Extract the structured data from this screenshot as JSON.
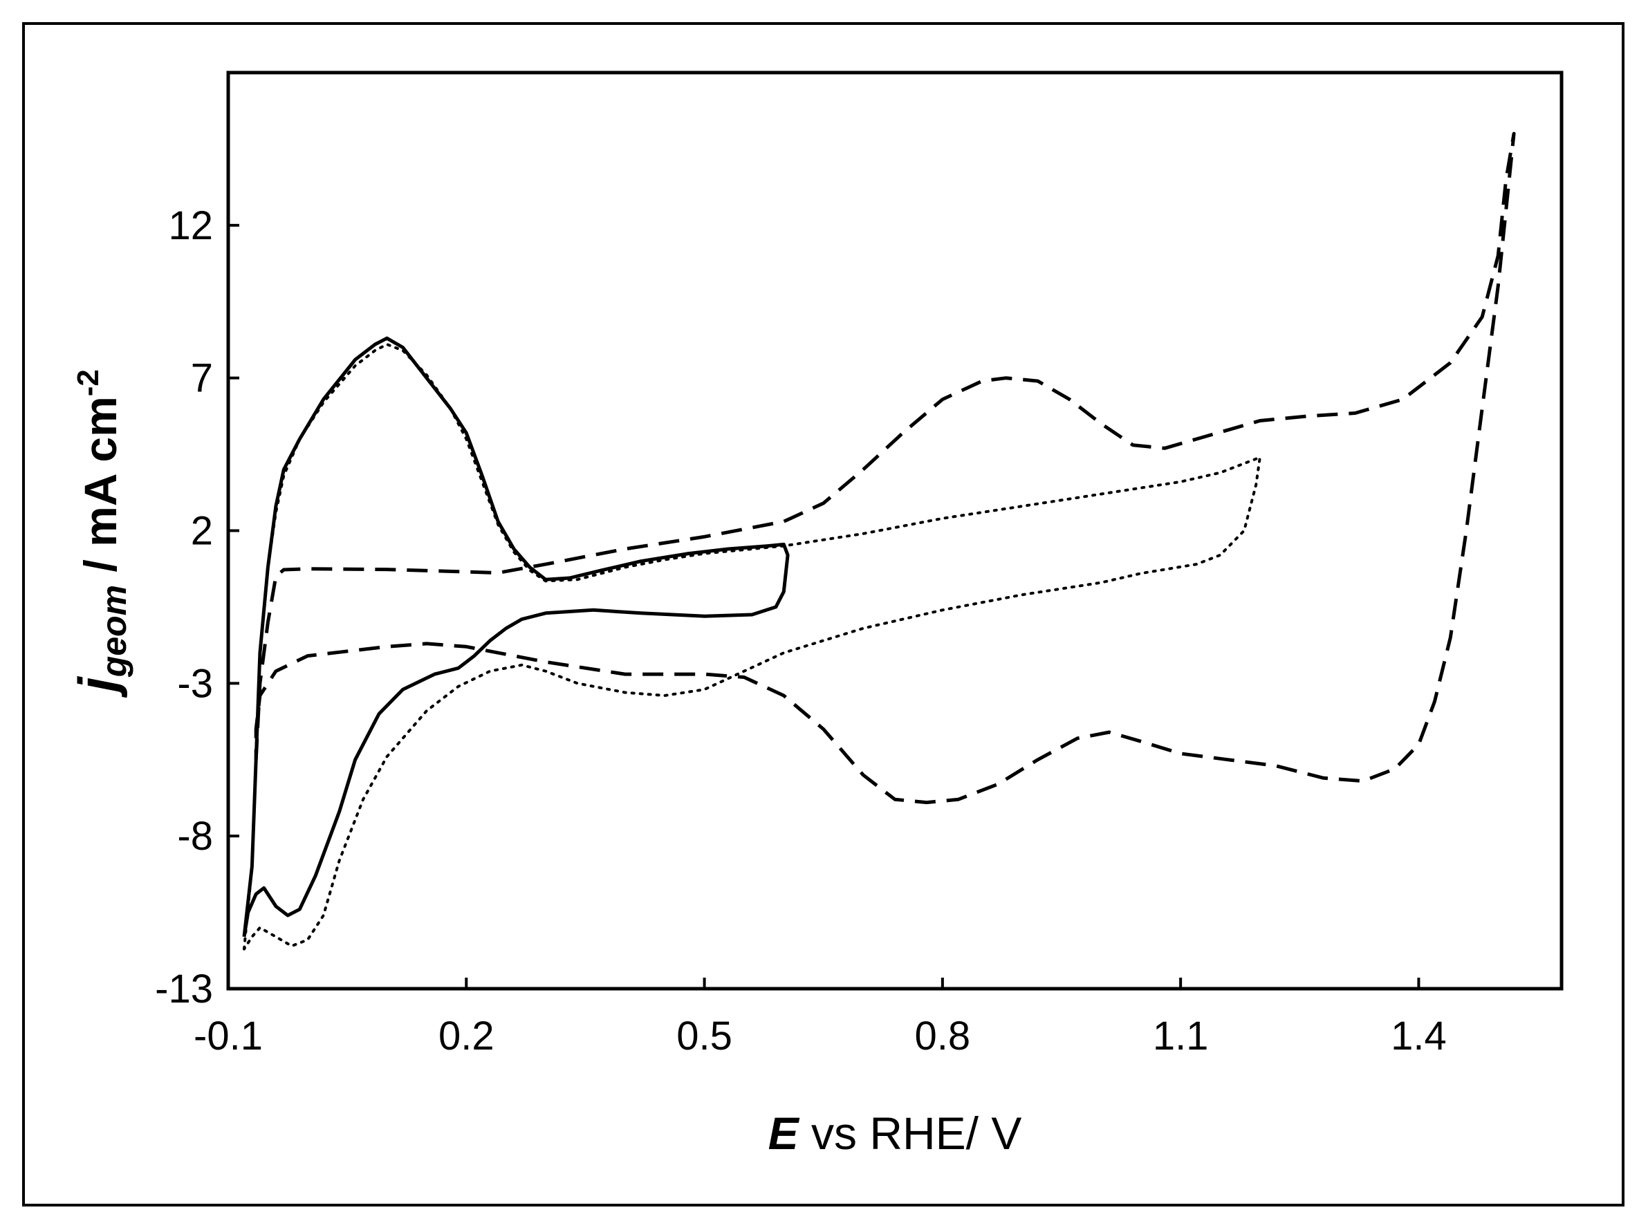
{
  "chart_data": {
    "type": "line",
    "title": "",
    "xlabel": {
      "italic": "E",
      "rest": " vs RHE/ V"
    },
    "ylabel": {
      "base": "j",
      "subscript": "geom",
      "rest": " / mA cm",
      "superscript": "-2"
    },
    "xlim": [
      -0.1,
      1.58
    ],
    "ylim": [
      -13,
      17
    ],
    "x_ticks": [
      -0.1,
      0.2,
      0.5,
      0.8,
      1.1,
      1.4
    ],
    "x_tick_labels": [
      "-0.1",
      "0.2",
      "0.5",
      "0.8",
      "1.1",
      "1.4"
    ],
    "y_ticks": [
      -13,
      -8,
      -3,
      2,
      7,
      12
    ],
    "y_tick_labels": [
      "-13",
      "-8",
      "-3",
      "2",
      "7",
      "12"
    ],
    "grid": false,
    "legend": "none",
    "series": [
      {
        "style": "solid",
        "points": [
          [
            -0.08,
            -11.3
          ],
          [
            -0.07,
            -9.0
          ],
          [
            -0.065,
            -5.5
          ],
          [
            -0.06,
            -2.0
          ],
          [
            -0.05,
            0.8
          ],
          [
            -0.04,
            2.8
          ],
          [
            -0.03,
            4.0
          ],
          [
            -0.01,
            5.0
          ],
          [
            0.02,
            6.3
          ],
          [
            0.06,
            7.6
          ],
          [
            0.085,
            8.1
          ],
          [
            0.1,
            8.3
          ],
          [
            0.12,
            8.0
          ],
          [
            0.15,
            7.0
          ],
          [
            0.18,
            6.0
          ],
          [
            0.2,
            5.2
          ],
          [
            0.22,
            3.8
          ],
          [
            0.24,
            2.3
          ],
          [
            0.26,
            1.4
          ],
          [
            0.28,
            0.8
          ],
          [
            0.3,
            0.4
          ],
          [
            0.33,
            0.45
          ],
          [
            0.37,
            0.7
          ],
          [
            0.42,
            1.0
          ],
          [
            0.48,
            1.25
          ],
          [
            0.53,
            1.4
          ],
          [
            0.58,
            1.5
          ],
          [
            0.6,
            1.55
          ],
          [
            0.605,
            1.2
          ],
          [
            0.6,
            0.0
          ],
          [
            0.59,
            -0.5
          ],
          [
            0.56,
            -0.75
          ],
          [
            0.5,
            -0.8
          ],
          [
            0.42,
            -0.7
          ],
          [
            0.36,
            -0.6
          ],
          [
            0.3,
            -0.7
          ],
          [
            0.27,
            -0.9
          ],
          [
            0.25,
            -1.2
          ],
          [
            0.23,
            -1.6
          ],
          [
            0.21,
            -2.1
          ],
          [
            0.19,
            -2.5
          ],
          [
            0.16,
            -2.7
          ],
          [
            0.12,
            -3.2
          ],
          [
            0.09,
            -4.0
          ],
          [
            0.06,
            -5.5
          ],
          [
            0.04,
            -7.2
          ],
          [
            0.01,
            -9.3
          ],
          [
            -0.01,
            -10.4
          ],
          [
            -0.025,
            -10.6
          ],
          [
            -0.04,
            -10.3
          ],
          [
            -0.055,
            -9.7
          ],
          [
            -0.065,
            -9.9
          ],
          [
            -0.075,
            -10.5
          ],
          [
            -0.08,
            -11.3
          ]
        ]
      },
      {
        "style": "dotted",
        "points": [
          [
            -0.08,
            -11.7
          ],
          [
            -0.07,
            -9.0
          ],
          [
            -0.065,
            -5.5
          ],
          [
            -0.06,
            -2.0
          ],
          [
            -0.05,
            0.8
          ],
          [
            -0.04,
            2.6
          ],
          [
            -0.03,
            3.8
          ],
          [
            -0.01,
            5.0
          ],
          [
            0.02,
            6.2
          ],
          [
            0.06,
            7.4
          ],
          [
            0.085,
            7.9
          ],
          [
            0.1,
            8.1
          ],
          [
            0.12,
            7.9
          ],
          [
            0.15,
            7.1
          ],
          [
            0.18,
            6.0
          ],
          [
            0.2,
            5.0
          ],
          [
            0.22,
            3.6
          ],
          [
            0.24,
            2.2
          ],
          [
            0.26,
            1.3
          ],
          [
            0.28,
            0.7
          ],
          [
            0.3,
            0.35
          ],
          [
            0.34,
            0.4
          ],
          [
            0.4,
            0.8
          ],
          [
            0.45,
            1.05
          ],
          [
            0.5,
            1.25
          ],
          [
            0.6,
            1.5
          ],
          [
            0.7,
            1.9
          ],
          [
            0.8,
            2.4
          ],
          [
            0.9,
            2.8
          ],
          [
            1.0,
            3.2
          ],
          [
            1.1,
            3.6
          ],
          [
            1.15,
            3.9
          ],
          [
            1.2,
            4.4
          ],
          [
            1.195,
            3.5
          ],
          [
            1.18,
            2.0
          ],
          [
            1.15,
            1.2
          ],
          [
            1.12,
            0.9
          ],
          [
            1.05,
            0.6
          ],
          [
            1.0,
            0.3
          ],
          [
            0.9,
            -0.1
          ],
          [
            0.8,
            -0.6
          ],
          [
            0.7,
            -1.2
          ],
          [
            0.6,
            -2.0
          ],
          [
            0.55,
            -2.6
          ],
          [
            0.5,
            -3.2
          ],
          [
            0.45,
            -3.4
          ],
          [
            0.4,
            -3.3
          ],
          [
            0.34,
            -3.0
          ],
          [
            0.3,
            -2.6
          ],
          [
            0.27,
            -2.4
          ],
          [
            0.23,
            -2.6
          ],
          [
            0.19,
            -3.1
          ],
          [
            0.15,
            -3.9
          ],
          [
            0.1,
            -5.4
          ],
          [
            0.07,
            -6.8
          ],
          [
            0.04,
            -8.8
          ],
          [
            0.02,
            -10.6
          ],
          [
            0.0,
            -11.4
          ],
          [
            -0.02,
            -11.6
          ],
          [
            -0.04,
            -11.3
          ],
          [
            -0.06,
            -11.0
          ],
          [
            -0.07,
            -11.3
          ],
          [
            -0.08,
            -11.7
          ]
        ]
      },
      {
        "style": "dashed",
        "points": [
          [
            -0.065,
            -5.5
          ],
          [
            -0.06,
            -3.0
          ],
          [
            -0.05,
            -1.0
          ],
          [
            -0.04,
            0.5
          ],
          [
            -0.03,
            0.72
          ],
          [
            0.0,
            0.75
          ],
          [
            0.1,
            0.73
          ],
          [
            0.2,
            0.65
          ],
          [
            0.24,
            0.62
          ],
          [
            0.3,
            0.9
          ],
          [
            0.4,
            1.4
          ],
          [
            0.5,
            1.8
          ],
          [
            0.6,
            2.3
          ],
          [
            0.65,
            2.9
          ],
          [
            0.7,
            4.0
          ],
          [
            0.75,
            5.2
          ],
          [
            0.8,
            6.3
          ],
          [
            0.85,
            6.9
          ],
          [
            0.88,
            7.0
          ],
          [
            0.92,
            6.9
          ],
          [
            0.96,
            6.3
          ],
          [
            1.0,
            5.5
          ],
          [
            1.04,
            4.8
          ],
          [
            1.08,
            4.7
          ],
          [
            1.12,
            5.0
          ],
          [
            1.16,
            5.3
          ],
          [
            1.2,
            5.6
          ],
          [
            1.26,
            5.75
          ],
          [
            1.32,
            5.85
          ],
          [
            1.38,
            6.3
          ],
          [
            1.44,
            7.5
          ],
          [
            1.48,
            9.0
          ],
          [
            1.5,
            11.0
          ],
          [
            1.51,
            13.5
          ],
          [
            1.52,
            15.0
          ],
          [
            1.51,
            12.5
          ],
          [
            1.5,
            10.0
          ],
          [
            1.48,
            6.0
          ],
          [
            1.46,
            2.0
          ],
          [
            1.44,
            -1.5
          ],
          [
            1.42,
            -3.6
          ],
          [
            1.4,
            -5.0
          ],
          [
            1.37,
            -5.8
          ],
          [
            1.33,
            -6.2
          ],
          [
            1.28,
            -6.1
          ],
          [
            1.22,
            -5.7
          ],
          [
            1.16,
            -5.5
          ],
          [
            1.1,
            -5.3
          ],
          [
            1.05,
            -4.9
          ],
          [
            1.01,
            -4.6
          ],
          [
            0.97,
            -4.8
          ],
          [
            0.92,
            -5.5
          ],
          [
            0.87,
            -6.3
          ],
          [
            0.82,
            -6.8
          ],
          [
            0.78,
            -6.9
          ],
          [
            0.74,
            -6.8
          ],
          [
            0.7,
            -6.0
          ],
          [
            0.65,
            -4.5
          ],
          [
            0.6,
            -3.4
          ],
          [
            0.55,
            -2.8
          ],
          [
            0.5,
            -2.7
          ],
          [
            0.4,
            -2.7
          ],
          [
            0.3,
            -2.3
          ],
          [
            0.2,
            -1.8
          ],
          [
            0.15,
            -1.7
          ],
          [
            0.1,
            -1.8
          ],
          [
            0.0,
            -2.1
          ],
          [
            -0.04,
            -2.6
          ],
          [
            -0.06,
            -3.4
          ],
          [
            -0.065,
            -4.5
          ],
          [
            -0.065,
            -5.5
          ]
        ]
      }
    ]
  }
}
